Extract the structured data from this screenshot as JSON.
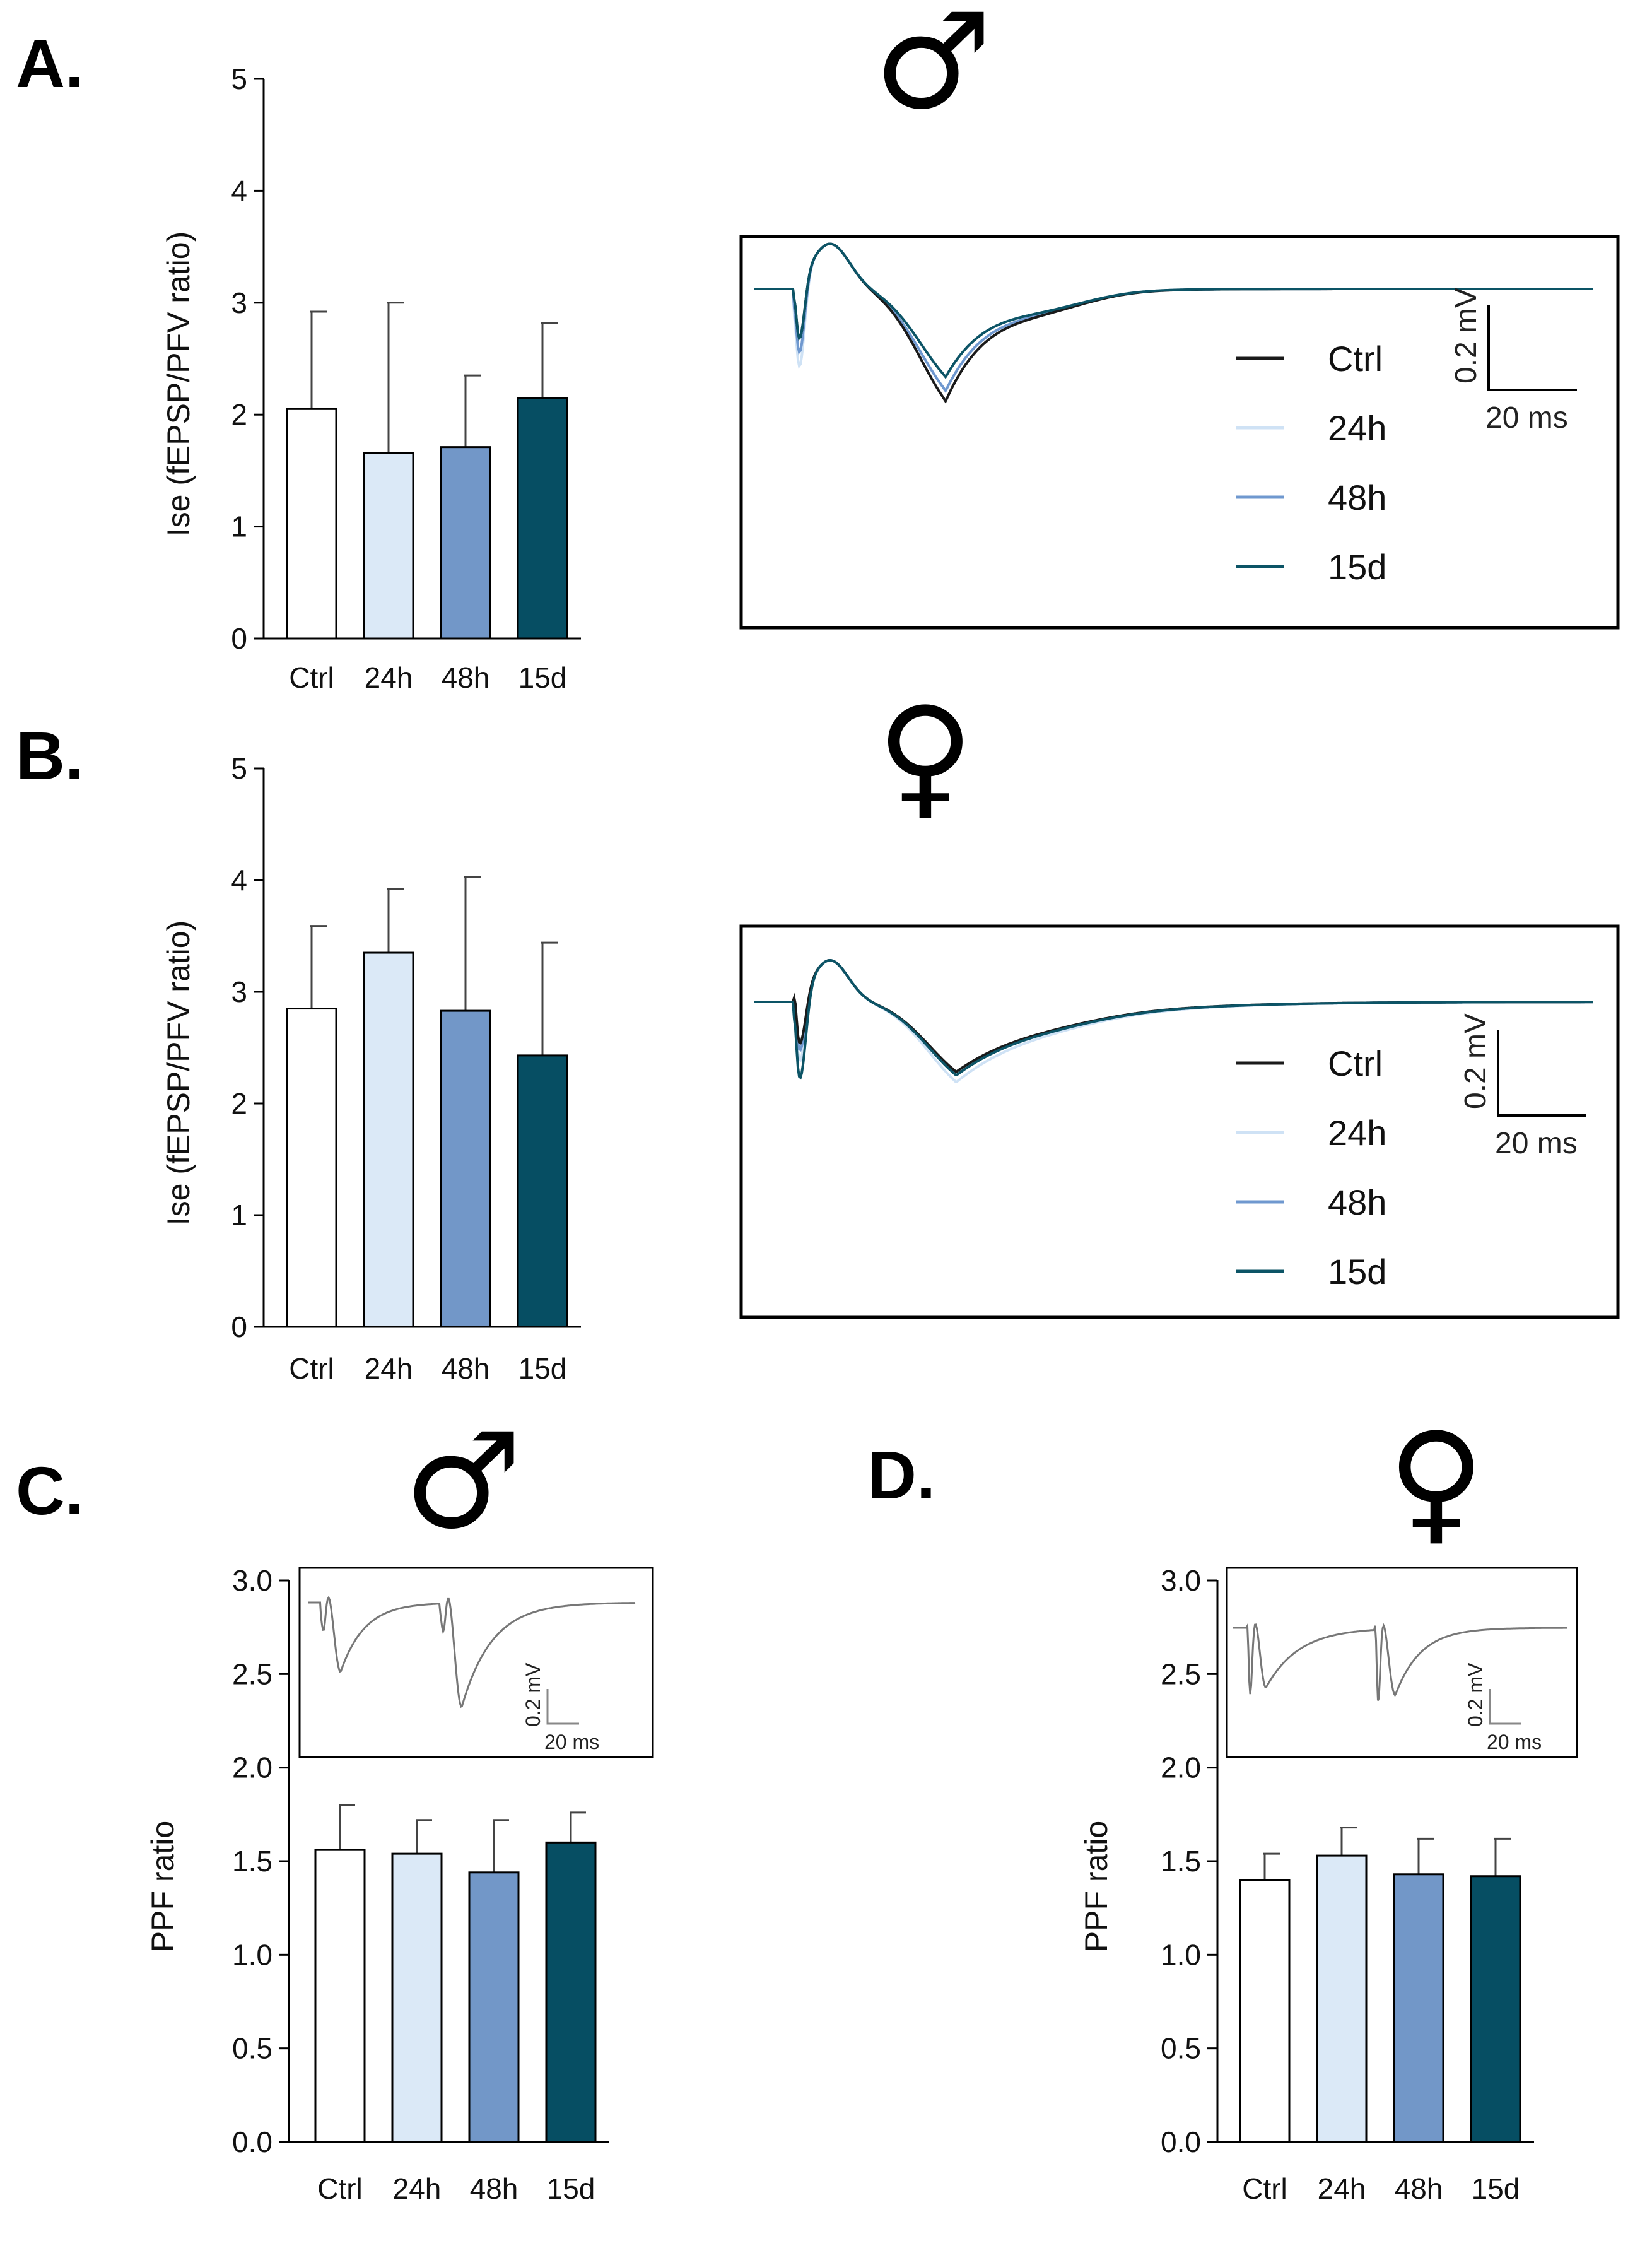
{
  "colors": {
    "Ctrl": "#ffffff",
    "24h": "#dbe9f7",
    "48h": "#7297c8",
    "15d": "#064e63",
    "trace_Ctrl": "#1a1a1a",
    "trace_24h": "#cfe2f5",
    "trace_48h": "#6f98cf",
    "trace_15d": "#0c5466",
    "inset_trace": "#777777"
  },
  "panels": {
    "A": {
      "letter": "A.",
      "sex_symbol": "♂"
    },
    "B": {
      "letter": "B.",
      "sex_symbol": "♀"
    },
    "C": {
      "letter": "C.",
      "sex_symbol": "♂"
    },
    "D": {
      "letter": "D.",
      "sex_symbol": "♀"
    }
  },
  "legend": {
    "entries": [
      "Ctrl",
      "24h",
      "48h",
      "15d"
    ]
  },
  "scale_bars": {
    "voltage": "0.2 mV",
    "time": "20 ms"
  },
  "chart_data": [
    {
      "id": "A",
      "type": "bar",
      "categories": [
        "Ctrl",
        "24h",
        "48h",
        "15d"
      ],
      "values": [
        2.05,
        1.66,
        1.71,
        2.15
      ],
      "errors_upper": [
        2.92,
        3.0,
        2.35,
        2.82
      ],
      "ylabel": "Ise (fEPSP/PFV ratio)",
      "ylim": [
        0,
        5
      ],
      "yticks": [
        "0",
        "1",
        "2",
        "3",
        "4",
        "5"
      ]
    },
    {
      "id": "A-traces",
      "type": "line",
      "series": [
        {
          "name": "Ctrl",
          "baseline": 0.0,
          "first_trough": -0.18,
          "second_trough": -0.32
        },
        {
          "name": "24h",
          "baseline": 0.0,
          "first_trough": -0.26,
          "second_trough": -0.29
        },
        {
          "name": "48h",
          "baseline": 0.0,
          "first_trough": -0.22,
          "second_trough": -0.29
        },
        {
          "name": "15d",
          "baseline": 0.0,
          "first_trough": -0.18,
          "second_trough": -0.25
        }
      ]
    },
    {
      "id": "B",
      "type": "bar",
      "categories": [
        "Ctrl",
        "24h",
        "48h",
        "15d"
      ],
      "values": [
        2.85,
        3.35,
        2.83,
        2.43
      ],
      "errors_upper": [
        3.59,
        3.92,
        4.03,
        3.44
      ],
      "ylabel": "Ise (fEPSP/PFV ratio)",
      "ylim": [
        0,
        5
      ],
      "yticks": [
        "0",
        "1",
        "2",
        "3",
        "4",
        "5"
      ]
    },
    {
      "id": "B-traces",
      "type": "line",
      "series": [
        {
          "name": "Ctrl",
          "baseline": 0.0,
          "first_trough": -0.15,
          "second_trough": -0.2
        },
        {
          "name": "24h",
          "baseline": 0.0,
          "first_trough": -0.2,
          "second_trough": -0.23
        },
        {
          "name": "48h",
          "baseline": 0.0,
          "first_trough": -0.17,
          "second_trough": -0.21
        },
        {
          "name": "15d",
          "baseline": 0.0,
          "first_trough": -0.25,
          "second_trough": -0.21
        }
      ]
    },
    {
      "id": "C",
      "type": "bar",
      "categories": [
        "Ctrl",
        "24h",
        "48h",
        "15d"
      ],
      "values": [
        1.56,
        1.54,
        1.44,
        1.6
      ],
      "errors_upper": [
        1.8,
        1.72,
        1.72,
        1.76
      ],
      "ylabel": "PPF ratio",
      "ylim": [
        0,
        3
      ],
      "yticks": [
        "0.0",
        "0.5",
        "1.0",
        "1.5",
        "2.0",
        "2.5",
        "3.0"
      ]
    },
    {
      "id": "D",
      "type": "bar",
      "categories": [
        "Ctrl",
        "24h",
        "48h",
        "15d"
      ],
      "values": [
        1.4,
        1.53,
        1.43,
        1.42
      ],
      "errors_upper": [
        1.54,
        1.68,
        1.62,
        1.62
      ],
      "ylabel": "PPF ratio",
      "ylim": [
        0,
        3
      ],
      "yticks": [
        "0.0",
        "0.5",
        "1.0",
        "1.5",
        "2.0",
        "2.5",
        "3.0"
      ]
    }
  ]
}
